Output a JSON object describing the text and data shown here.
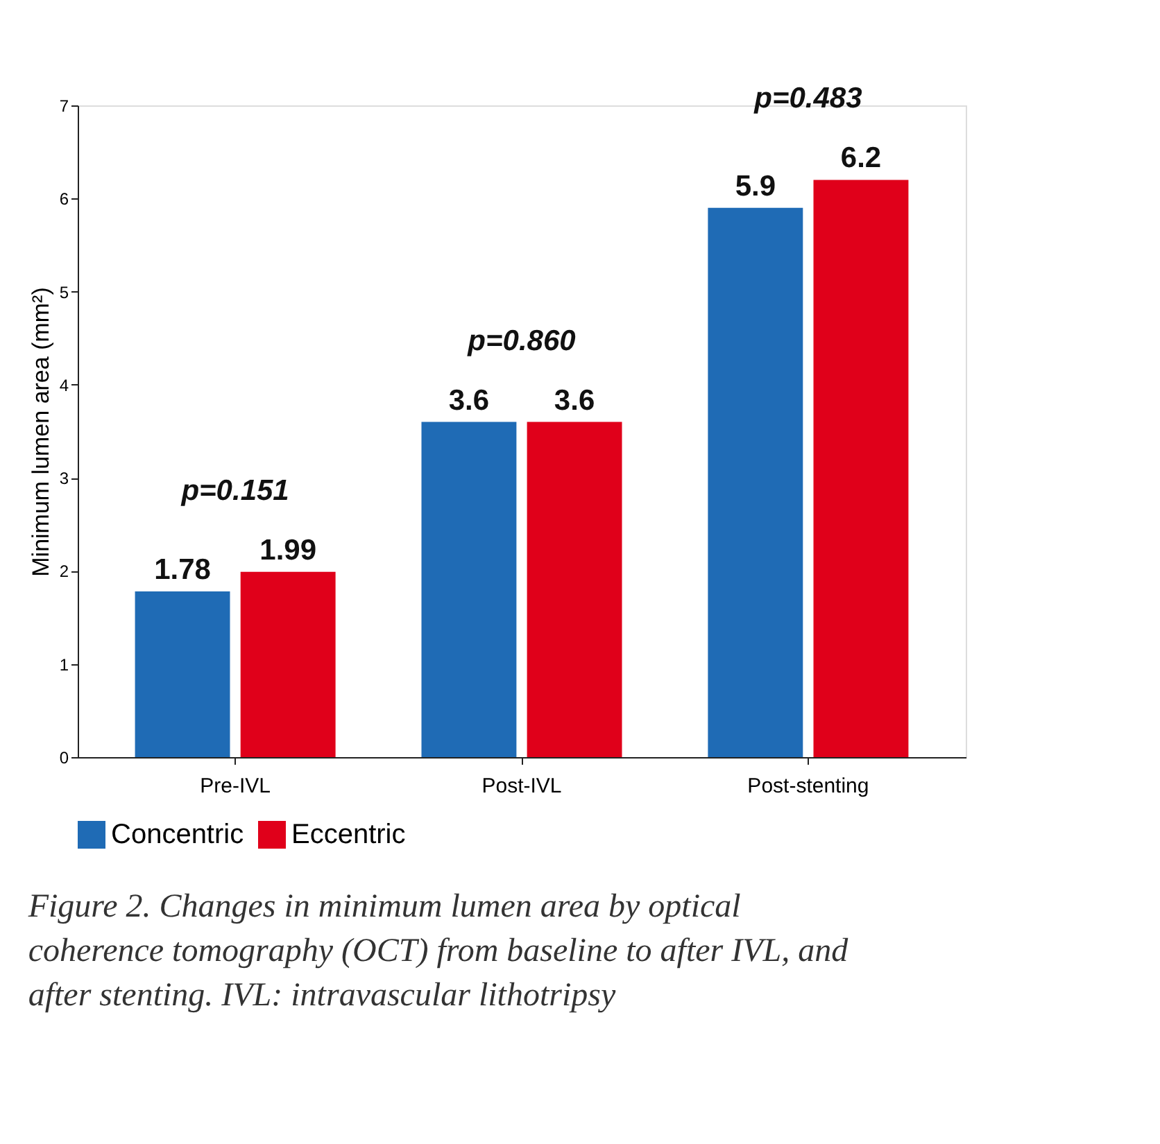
{
  "chart_data": {
    "type": "bar",
    "ylabel": "Minimum lumen area (mm²)",
    "categories": [
      "Pre-IVL",
      "Post-IVL",
      "Post-stenting"
    ],
    "series": [
      {
        "name": "Concentric",
        "color": "#1f6bb5",
        "values": [
          1.78,
          3.6,
          5.9
        ]
      },
      {
        "name": "Eccentric",
        "color": "#e0001a",
        "values": [
          1.99,
          3.6,
          6.2
        ]
      }
    ],
    "ylim": [
      0,
      7
    ],
    "yticks": [
      0,
      1,
      2,
      3,
      4,
      5,
      6,
      7
    ],
    "grid": false,
    "legend": "bottom",
    "data_labels": true,
    "annotations": [
      {
        "text": "p=0.151",
        "x": "Pre-IVL",
        "y": 1.99
      },
      {
        "text": "p=0.860",
        "x": "Post-IVL",
        "y": 3.6
      },
      {
        "text": "p=0.483",
        "x": "Post-stenting",
        "y": 6.2
      },
      "Figure 2. Changes in minimum lumen area by optical coherence tomography (OCT) from baseline to after IVL, and after stenting. IVL: intravascular lithotripsy"
    ]
  }
}
